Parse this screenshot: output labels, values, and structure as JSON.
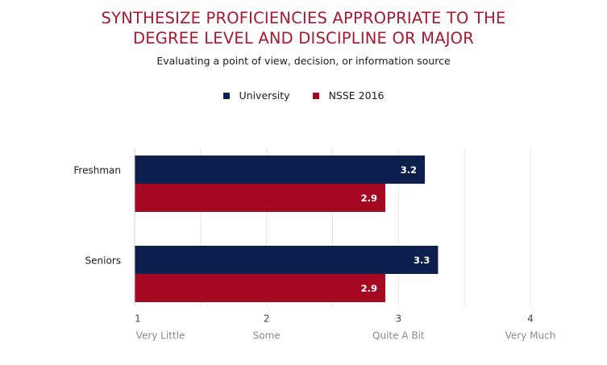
{
  "chart_data": {
    "type": "bar",
    "orientation": "horizontal",
    "title": "SYNTHESIZE PROFICIENCIES APPROPRIATE TO THE DEGREE LEVEL AND DISCIPLINE OR MAJOR",
    "title_lines": [
      "SYNTHESIZE PROFICIENCIES APPROPRIATE TO THE",
      "DEGREE LEVEL AND DISCIPLINE OR MAJOR"
    ],
    "subtitle": "Evaluating a point of view, decision, or information source",
    "categories": [
      "Freshman",
      "Seniors"
    ],
    "series": [
      {
        "name": "University",
        "color": "#0d1f4c",
        "values": [
          3.2,
          3.3
        ]
      },
      {
        "name": "NSSE 2016",
        "color": "#a50922",
        "values": [
          2.9,
          2.9
        ]
      }
    ],
    "xlim": [
      1,
      4
    ],
    "x_ticks": [
      {
        "value": 1,
        "number": "1",
        "label": "Very Little"
      },
      {
        "value": 2,
        "number": "2",
        "label": "Some"
      },
      {
        "value": 3,
        "number": "3",
        "label": "Quite A Bit"
      },
      {
        "value": 4,
        "number": "4",
        "label": "Very Much"
      }
    ],
    "legend_position": "top-center",
    "grid": true
  }
}
